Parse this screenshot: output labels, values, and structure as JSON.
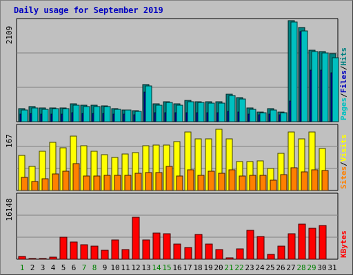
{
  "chart_data": {
    "type": "bar",
    "title": "Daily usage for September 2019",
    "categories": [
      "1",
      "2",
      "3",
      "4",
      "5",
      "6",
      "7",
      "8",
      "9",
      "10",
      "11",
      "12",
      "13",
      "14",
      "15",
      "16",
      "17",
      "18",
      "19",
      "20",
      "21",
      "22",
      "23",
      "24",
      "25",
      "26",
      "27",
      "28",
      "29",
      "30",
      "31"
    ],
    "weekend_days": [
      1,
      7,
      8,
      14,
      15,
      21,
      22,
      28,
      29
    ],
    "panels": [
      {
        "name": "hits-files-pages",
        "ymax_label": "2109",
        "ymax": 2109,
        "legend": [
          {
            "text": "Pages",
            "color": "#00c0c0"
          },
          {
            "text": "/",
            "color": "#000000"
          },
          {
            "text": "Files",
            "color": "#0000c0"
          },
          {
            "text": "/",
            "color": "#000000"
          },
          {
            "text": "Hits",
            "color": "#008080"
          }
        ],
        "series": [
          {
            "name": "Hits",
            "color": "#008080",
            "values": [
              270,
              310,
              280,
              290,
              285,
              380,
              340,
              340,
              330,
              270,
              250,
              230,
              780,
              370,
              420,
              370,
              440,
              420,
              410,
              410,
              580,
              500,
              280,
              200,
              270,
              200,
              2109,
              1970,
              1490,
              1460,
              1420
            ]
          },
          {
            "name": "Files",
            "color": "#0000c0",
            "values": [
              160,
              170,
              160,
              160,
              160,
              180,
              175,
              175,
              175,
              160,
              155,
              150,
              620,
              180,
              190,
              180,
              190,
              190,
              185,
              185,
              210,
              200,
              160,
              140,
              160,
              140,
              430,
              1880,
              1080,
              1080,
              1020
            ]
          },
          {
            "name": "Pages",
            "color": "#00c0c0",
            "values": [
              250,
              290,
              260,
              270,
              270,
              350,
              320,
              320,
              320,
              260,
              240,
              220,
              740,
              350,
              400,
              350,
              420,
              400,
              390,
              390,
              550,
              480,
              260,
              190,
              250,
              190,
              2080,
              1900,
              1460,
              1430,
              1330
            ]
          }
        ]
      },
      {
        "name": "visits-sites",
        "ymax_label": "167",
        "ymax": 167,
        "legend": [
          {
            "text": "Sites",
            "color": "#ff8000"
          },
          {
            "text": "/",
            "color": "#000000"
          },
          {
            "text": "Visits",
            "color": "#ffff00"
          }
        ],
        "series": [
          {
            "name": "Visits",
            "color": "#ffff00",
            "values": [
              92,
              62,
              102,
              125,
              112,
              142,
              116,
              102,
              94,
              86,
              96,
              99,
              116,
              119,
              119,
              128,
              152,
              135,
              135,
              159,
              135,
              76,
              76,
              78,
              57,
              97,
              152,
              134,
              152,
              110,
              0
            ]
          },
          {
            "name": "Sites",
            "color": "#ff8000",
            "values": [
              35,
              24,
              30,
              43,
              50,
              70,
              38,
              37,
              40,
              40,
              40,
              44,
              46,
              46,
              63,
              38,
              53,
              40,
              50,
              45,
              53,
              38,
              40,
              40,
              27,
              42,
              60,
              48,
              53,
              52,
              0
            ]
          }
        ]
      },
      {
        "name": "kbytes",
        "ymax_label": "16148",
        "ymax": 16148,
        "legend": [
          {
            "text": "KBytes",
            "color": "#ff0000"
          }
        ],
        "series": [
          {
            "name": "KBytes",
            "color": "#ff0000",
            "values": [
              620,
              260,
              260,
              500,
              5470,
              4260,
              3620,
              3260,
              2200,
              4860,
              2460,
              10600,
              4900,
              6640,
              6400,
              3740,
              2870,
              6290,
              3870,
              2460,
              270,
              2620,
              7250,
              5680,
              1150,
              3250,
              6460,
              8800,
              7800,
              8500,
              0
            ]
          }
        ]
      }
    ]
  }
}
